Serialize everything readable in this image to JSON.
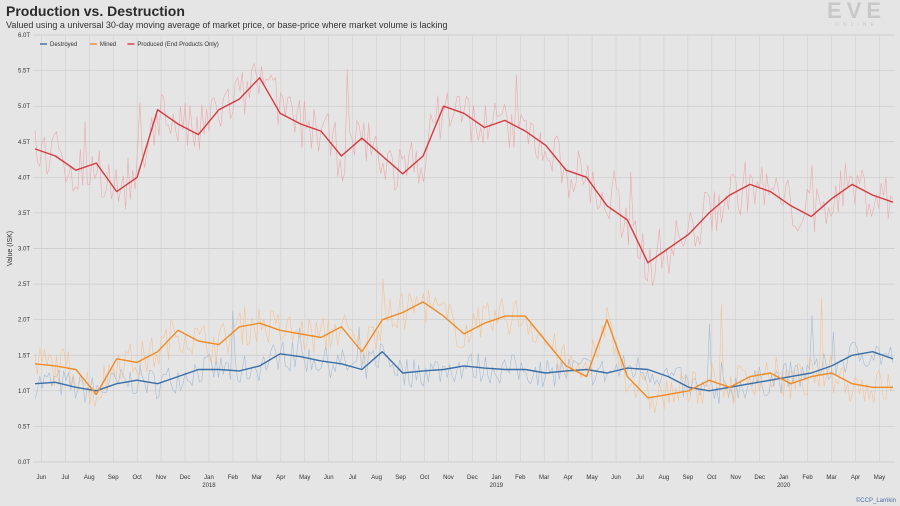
{
  "chart_data": {
    "type": "line",
    "title": "Production vs. Destruction",
    "subtitle": "Valued using a universal 30-day moving average of market price, or base-price where market volume is lacking",
    "ylabel": "Value (ISK)",
    "ylim": [
      0,
      6.0
    ],
    "yticks": [
      "0.0T",
      "0.5T",
      "1.0T",
      "1.5T",
      "2.0T",
      "2.5T",
      "3.0T",
      "3.5T",
      "4.0T",
      "4.5T",
      "5.0T",
      "5.5T",
      "6.0T"
    ],
    "month_labels": [
      "Jun",
      "Jul",
      "Aug",
      "Sep",
      "Oct",
      "Nov",
      "Dec",
      "Jan",
      "Feb",
      "Mar",
      "Apr",
      "May",
      "Jun",
      "Jul",
      "Aug",
      "Sep",
      "Oct",
      "Nov",
      "Dec",
      "Jan",
      "Feb",
      "Mar",
      "Apr",
      "May",
      "Jun",
      "Jul",
      "Aug",
      "Sep",
      "Oct",
      "Nov",
      "Dec",
      "Jan",
      "Feb",
      "Mar",
      "Apr",
      "May"
    ],
    "year_labels": [
      "2018",
      "2019",
      "2020"
    ],
    "series": [
      {
        "name": "Destroyed",
        "color": "#3a6ea5",
        "color_raw": "#9fb6d2",
        "values": [
          1.1,
          1.12,
          1.05,
          1.0,
          1.1,
          1.15,
          1.1,
          1.2,
          1.3,
          1.3,
          1.28,
          1.35,
          1.52,
          1.48,
          1.42,
          1.38,
          1.3,
          1.55,
          1.25,
          1.28,
          1.3,
          1.35,
          1.32,
          1.3,
          1.3,
          1.25,
          1.28,
          1.3,
          1.25,
          1.32,
          1.3,
          1.2,
          1.05,
          1.0,
          1.05,
          1.1,
          1.15,
          1.2,
          1.25,
          1.35,
          1.5,
          1.55,
          1.45
        ]
      },
      {
        "name": "Mined",
        "color": "#f08a24",
        "color_raw": "#f5bf8c",
        "values": [
          1.38,
          1.35,
          1.3,
          0.95,
          1.45,
          1.4,
          1.55,
          1.85,
          1.7,
          1.65,
          1.9,
          1.95,
          1.85,
          1.8,
          1.75,
          1.9,
          1.55,
          2.0,
          2.1,
          2.25,
          2.05,
          1.8,
          1.95,
          2.05,
          2.05,
          1.7,
          1.35,
          1.2,
          2.0,
          1.2,
          0.9,
          0.95,
          1.0,
          1.15,
          1.05,
          1.2,
          1.25,
          1.1,
          1.2,
          1.25,
          1.1,
          1.05,
          1.05
        ]
      },
      {
        "name": "Produced (End Products Only)",
        "color": "#d63a3f",
        "color_raw": "#eba3a6",
        "values": [
          4.4,
          4.3,
          4.1,
          4.2,
          3.8,
          4.0,
          4.95,
          4.75,
          4.6,
          4.95,
          5.1,
          5.4,
          4.9,
          4.75,
          4.65,
          4.3,
          4.55,
          4.3,
          4.05,
          4.3,
          5.0,
          4.9,
          4.7,
          4.8,
          4.65,
          4.45,
          4.1,
          4.0,
          3.6,
          3.4,
          2.8,
          3.0,
          3.2,
          3.5,
          3.75,
          3.9,
          3.8,
          3.6,
          3.45,
          3.7,
          3.9,
          3.75,
          3.65
        ]
      }
    ]
  },
  "credit": "©CCP_Larrikin",
  "logo": {
    "big": "EVE",
    "small": "ONLINE"
  }
}
